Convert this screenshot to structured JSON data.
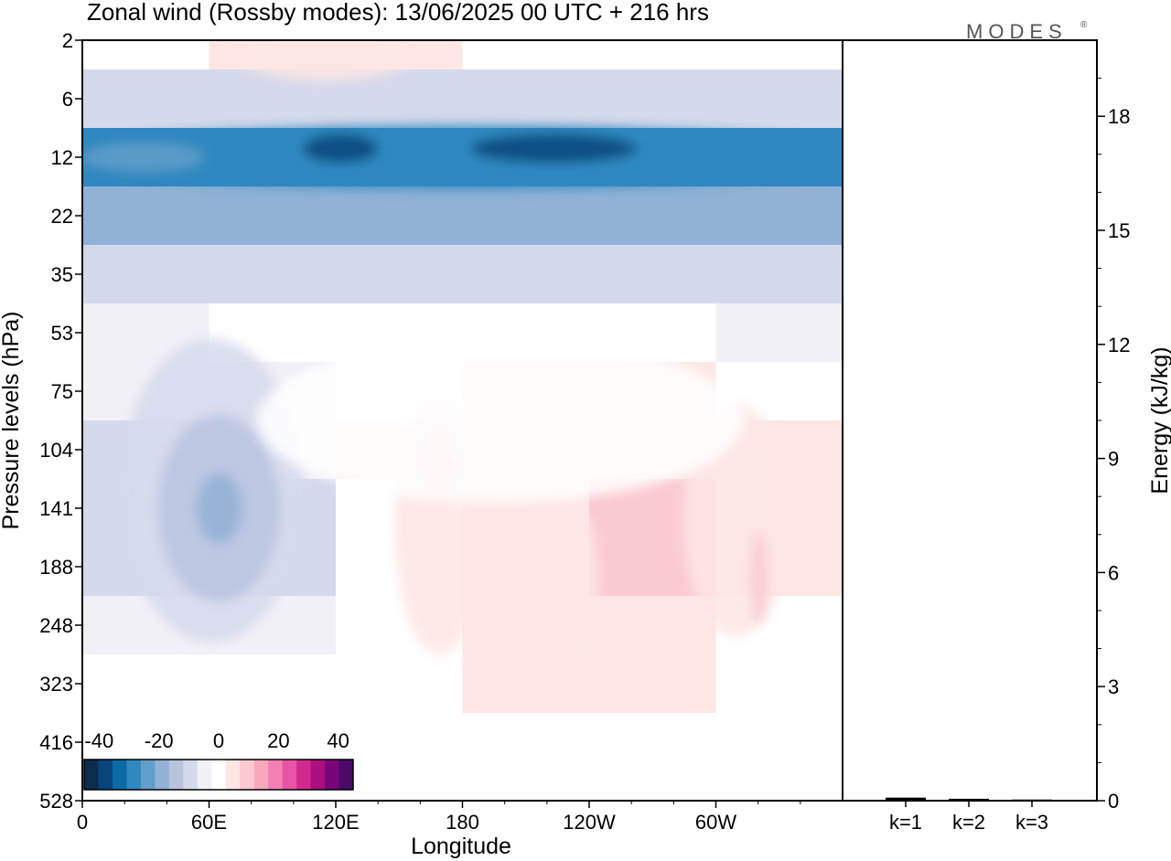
{
  "chart_data": [
    {
      "type": "heatmap",
      "title": "Zonal wind (Rossby modes):  13/06/2025  00 UTC  + 216 hrs",
      "xlabel": "Longitude",
      "ylabel": "Pressure levels (hPa)",
      "x_ticks": [
        "0",
        "60E",
        "120E",
        "180",
        "120W",
        "60W"
      ],
      "y_ticks": [
        "2",
        "6",
        "12",
        "22",
        "35",
        "53",
        "75",
        "104",
        "141",
        "188",
        "248",
        "323",
        "416",
        "528"
      ],
      "colorbar": {
        "ticks": [
          "-40",
          "-20",
          "0",
          "20",
          "40"
        ],
        "range": [
          -45,
          45
        ],
        "colors": [
          "#0c2c4e",
          "#08457a",
          "#0b6aa6",
          "#2f88bf",
          "#629fca",
          "#91b2d6",
          "#b8c3e0",
          "#d5d9ec",
          "#f2f0f7",
          "#ffffff",
          "#fde6e4",
          "#fbcad0",
          "#f7a8bc",
          "#f280b3",
          "#e754a5",
          "#d02a90",
          "#ab0f80",
          "#7a0579",
          "#4b0a68"
        ]
      },
      "wind_field": {
        "description_levels_hpa": [
          2,
          6,
          12,
          22,
          35,
          53,
          75,
          104,
          141,
          188,
          248,
          323,
          416,
          528
        ],
        "longitudes_deg": [
          0,
          60,
          120,
          180,
          240,
          300,
          360
        ],
        "approx_values_ms": [
          [
            -2,
            4,
            8,
            3,
            -2,
            -2,
            -2
          ],
          [
            -10,
            -10,
            -10,
            -10,
            -10,
            -10,
            -10
          ],
          [
            -27,
            -29,
            -32,
            -29,
            -33,
            -30,
            -27
          ],
          [
            -18,
            -18,
            -19,
            -19,
            -20,
            -19,
            -18
          ],
          [
            -12,
            -12,
            -12,
            -12,
            -12,
            -12,
            -12
          ],
          [
            -4,
            -3,
            -2,
            0,
            0,
            -2,
            -4
          ],
          [
            -3,
            -6,
            -2,
            5,
            2,
            3,
            -3
          ],
          [
            -6,
            -12,
            -3,
            10,
            4,
            9,
            -4
          ],
          [
            -7,
            -16,
            -5,
            8,
            6,
            10,
            -5
          ],
          [
            -5,
            -12,
            -5,
            6,
            7,
            8,
            -3
          ],
          [
            -3,
            -6,
            -3,
            5,
            4,
            6,
            -2
          ],
          [
            -2,
            -3,
            -2,
            3,
            2,
            3,
            -2
          ],
          [
            -2,
            -2,
            -1,
            2,
            1,
            -2,
            -2
          ],
          [
            -2,
            -2,
            -1,
            1,
            -2,
            -3,
            -2
          ]
        ]
      }
    },
    {
      "type": "bar",
      "categories": [
        "k=1",
        "k=2",
        "k=3"
      ],
      "values": [
        0.08,
        0.05,
        0.03
      ],
      "ylabel": "Energy (kJ/kg)",
      "ylim": [
        0,
        20
      ],
      "y_ticks": [
        "0",
        "3",
        "6",
        "9",
        "12",
        "15",
        "18"
      ],
      "color": "#000000"
    }
  ],
  "logo_text": "MODES"
}
